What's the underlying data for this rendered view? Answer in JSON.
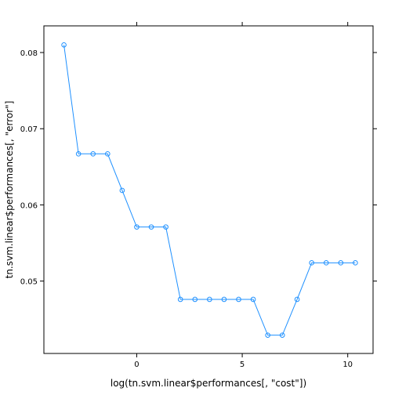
{
  "chart_data": {
    "type": "line",
    "xlabel": "log(tn.svm.linear$performances[, \"cost\"])",
    "ylabel": "tn.svm.linear$performances[, \"error\"]",
    "x_ticks": [
      0,
      5,
      10
    ],
    "y_ticks": [
      0.05,
      0.06,
      0.07,
      0.08
    ],
    "x_tick_labels": [
      "0",
      "5",
      "10"
    ],
    "y_tick_labels": [
      "0.05",
      "0.06",
      "0.07",
      "0.08"
    ],
    "xlim": [
      -4.4,
      11.2
    ],
    "ylim": [
      0.0405,
      0.0835
    ],
    "grid": false,
    "series": [
      {
        "color": "#1e90ff",
        "marker": "circle",
        "x": [
          -3.45,
          -2.76,
          -2.07,
          -1.38,
          -0.69,
          0.0,
          0.69,
          1.38,
          2.07,
          2.76,
          3.45,
          4.14,
          4.83,
          5.52,
          6.21,
          6.9,
          7.6,
          8.29,
          8.98,
          9.67,
          10.36
        ],
        "y": [
          0.081,
          0.0667,
          0.0667,
          0.0667,
          0.0619,
          0.0571,
          0.0571,
          0.0571,
          0.0476,
          0.0476,
          0.0476,
          0.0476,
          0.0476,
          0.0476,
          0.0429,
          0.0429,
          0.0476,
          0.0524,
          0.0524,
          0.0524,
          0.0524
        ]
      }
    ]
  }
}
